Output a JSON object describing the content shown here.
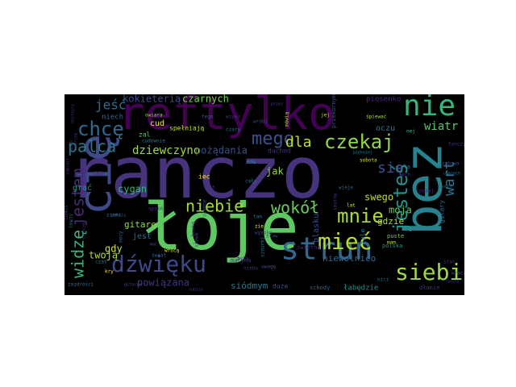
{
  "wordcloud": {
    "background": "#000000",
    "words": [
      {
        "text": "ranczo",
        "color": "#46337e"
      },
      {
        "text": "łoje",
        "color": "#5ec962"
      },
      {
        "text": "reftylko",
        "color": "#440154"
      },
      {
        "text": "bez",
        "color": "#26828e"
      },
      {
        "text": "cię",
        "color": "#3e4a89"
      },
      {
        "text": "strun",
        "color": "#31688e"
      },
      {
        "text": "nie",
        "color": "#35b779"
      },
      {
        "text": "mieć",
        "color": "#b5de2b"
      },
      {
        "text": "dźwięku",
        "color": "#3e4a89"
      },
      {
        "text": "siebie",
        "color": "#a0da39"
      },
      {
        "text": "chcę",
        "color": "#31688e"
      },
      {
        "text": "mnie",
        "color": "#addc30"
      },
      {
        "text": "czekaj",
        "color": "#8fd744"
      },
      {
        "text": "jesteś",
        "color": "#21918c"
      },
      {
        "text": "widzę",
        "color": "#35b779"
      },
      {
        "text": "jestem",
        "color": "#482878"
      },
      {
        "text": "niebie",
        "color": "#a5db36"
      },
      {
        "text": "wokół",
        "color": "#6ccd5a"
      },
      {
        "text": "palca",
        "color": "#2a788e"
      },
      {
        "text": "mego",
        "color": "#3b528b"
      },
      {
        "text": "jeść",
        "color": "#2e6e8e"
      },
      {
        "text": "dla",
        "color": "#c2df23"
      },
      {
        "text": "wart",
        "color": "#2c728e"
      },
      {
        "text": "się",
        "color": "#3b528b"
      },
      {
        "text": "wiatr",
        "color": "#5ec962"
      },
      {
        "text": "dziewczyno",
        "color": "#a0da39"
      },
      {
        "text": "kokieterią",
        "color": "#3e4a89"
      },
      {
        "text": "czarnych",
        "color": "#7ad151"
      },
      {
        "text": "pożądania",
        "color": "#3b528b"
      },
      {
        "text": "cygan",
        "color": "#35b779"
      },
      {
        "text": "gitarę",
        "color": "#8fd744"
      },
      {
        "text": "twoją",
        "color": "#addc30"
      },
      {
        "text": "powiązana",
        "color": "#46337e"
      },
      {
        "text": "siódmym",
        "color": "#2a788e"
      },
      {
        "text": "swego",
        "color": "#c2df23"
      },
      {
        "text": "moja",
        "color": "#5ec962"
      },
      {
        "text": "niewolnico",
        "color": "#31688e"
      },
      {
        "text": "jak",
        "color": "#8fd744"
      },
      {
        "text": "gdy",
        "color": "#d2e21b"
      },
      {
        "text": "gdzie",
        "color": "#b5de2b"
      },
      {
        "text": "blasku",
        "color": "#3e4a89"
      },
      {
        "text": "oczu",
        "color": "#2c728e"
      },
      {
        "text": "cud",
        "color": "#fde725"
      },
      {
        "text": "jest",
        "color": "#31688e"
      },
      {
        "text": "grać",
        "color": "#21918c"
      },
      {
        "text": "niech",
        "color": "#31688e"
      },
      {
        "text": "am",
        "color": "#482878"
      },
      {
        "text": "piosenko",
        "color": "#472c7a"
      },
      {
        "text": "spełniają",
        "color": "#c2df23"
      },
      {
        "text": "duchod",
        "color": "#443a83"
      },
      {
        "text": "duże",
        "color": "#3b528b"
      },
      {
        "text": "schody",
        "color": "#31688e"
      },
      {
        "text": "łabędzie",
        "color": "#21918c"
      },
      {
        "text": "polska",
        "color": "#21918c"
      },
      {
        "text": "dłonie",
        "color": "#46337e"
      },
      {
        "text": "świetna",
        "color": "#482878"
      },
      {
        "text": "gitary",
        "color": "#2e6e8e"
      },
      {
        "text": "puste",
        "color": "#7ad151"
      },
      {
        "text": "cała",
        "color": "#2c728e"
      },
      {
        "text": "sobota",
        "color": "#d8e219"
      },
      {
        "text": "przekornymi",
        "color": "#3b528b"
      },
      {
        "text": "tyle",
        "color": "#2a788e"
      },
      {
        "text": "małyna",
        "color": "#46337e"
      },
      {
        "text": "iec",
        "color": "#fde725"
      },
      {
        "text": "zal",
        "color": "#5ec962"
      },
      {
        "text": "owiara",
        "color": "#8fd744"
      },
      {
        "text": "cudownie",
        "color": "#2a788e"
      },
      {
        "text": "wróbi",
        "color": "#3e4a89"
      },
      {
        "text": "jej",
        "color": "#c2df23"
      },
      {
        "text": "nej",
        "color": "#35b779"
      },
      {
        "text": "tego",
        "color": "#3b528b"
      },
      {
        "text": "mówią",
        "color": "#a0da39"
      },
      {
        "text": "wzywa",
        "color": "#472c7a"
      },
      {
        "text": "śpiewać",
        "color": "#addc30"
      },
      {
        "text": "czary",
        "color": "#2c728e"
      },
      {
        "text": "mnę",
        "color": "#26828e"
      },
      {
        "text": "ach",
        "color": "#46337e"
      },
      {
        "text": "spokój",
        "color": "#482878"
      },
      {
        "text": "ziemi",
        "color": "#2a788e"
      },
      {
        "text": "słońce",
        "color": "#3e4a89"
      },
      {
        "text": "lat",
        "color": "#d2e21b"
      },
      {
        "text": "mam",
        "color": "#c2df23"
      },
      {
        "text": "tam",
        "color": "#31688e"
      },
      {
        "text": "zie",
        "color": "#fde725"
      },
      {
        "text": "wysoko",
        "color": "#3e4a89"
      },
      {
        "text": "wrócą",
        "color": "#fde725"
      },
      {
        "text": "świat",
        "color": "#31688e"
      },
      {
        "text": "niebo",
        "color": "#472c7a"
      },
      {
        "text": "subisz",
        "color": "#46337e"
      },
      {
        "text": "uwagę",
        "color": "#3e4a89"
      },
      {
        "text": "sznurki",
        "color": "#2c728e"
      },
      {
        "text": "smutny",
        "color": "#46337e"
      },
      {
        "text": "wieje",
        "color": "#31688e"
      },
      {
        "text": "piękniej",
        "color": "#2a788e"
      },
      {
        "text": "zabawa",
        "color": "#3b528b"
      },
      {
        "text": "uśmiech",
        "color": "#2e6e8e"
      },
      {
        "text": "stać",
        "color": "#472c7a"
      },
      {
        "text": "tańczy",
        "color": "#46337e"
      },
      {
        "text": "ziemia",
        "color": "#3e4a89"
      },
      {
        "text": "cały",
        "color": "#2c728e"
      },
      {
        "text": "pyta",
        "color": "#482878"
      },
      {
        "text": "czas",
        "color": "#2c728e"
      },
      {
        "text": "dostojny",
        "color": "#482878"
      },
      {
        "text": "sercem",
        "color": "#46337e"
      },
      {
        "text": "smaku",
        "color": "#3b528b"
      },
      {
        "text": "zazdrości",
        "color": "#31688e"
      },
      {
        "text": "tańczy",
        "color": "#2c728e"
      },
      {
        "text": "pełnią",
        "color": "#3e4a89"
      },
      {
        "text": "ach",
        "color": "#472c7a"
      },
      {
        "text": "ludzi",
        "color": "#2a788e"
      },
      {
        "text": "mocy",
        "color": "#31688e"
      },
      {
        "text": "kry",
        "color": "#fde725"
      },
      {
        "text": "słońcem",
        "color": "#46337e"
      },
      {
        "text": "bosko",
        "color": "#46337e"
      },
      {
        "text": "gitarze",
        "color": "#3e4a89"
      },
      {
        "text": "przez",
        "color": "#443a83"
      },
      {
        "text": "zamiast",
        "color": "#482878"
      },
      {
        "text": "moc",
        "color": "#3b528b"
      },
      {
        "text": "słowa",
        "color": "#3e4a89"
      },
      {
        "text": "podaj",
        "color": "#482878"
      },
      {
        "text": "nici",
        "color": "#2c728e"
      },
      {
        "text": "wraca",
        "color": "#3b528b"
      },
      {
        "text": "nasza",
        "color": "#46337e"
      },
      {
        "text": "sław",
        "color": "#3e4a89"
      }
    ]
  }
}
